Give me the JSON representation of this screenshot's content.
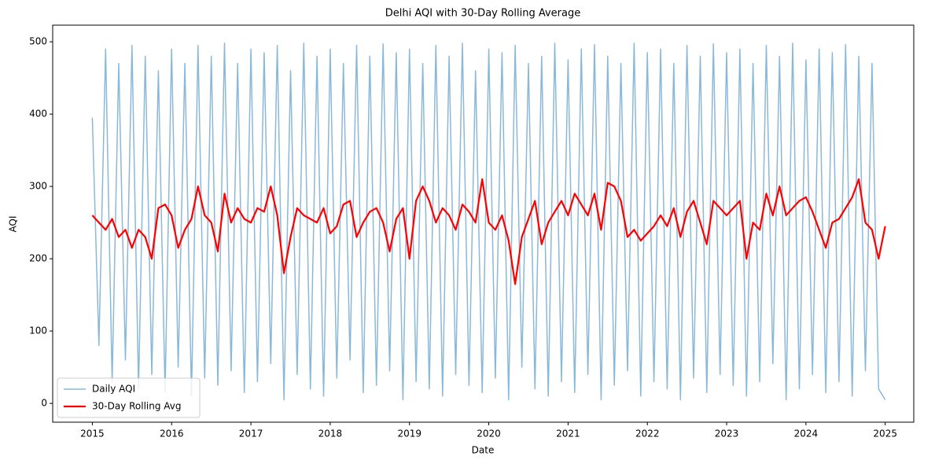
{
  "chart_data": {
    "type": "line",
    "title": "Delhi AQI with 30-Day Rolling Average",
    "x_label": "Date",
    "y_label": "AQI",
    "x": [
      2015,
      2015.083,
      2015.167,
      2015.25,
      2015.333,
      2015.417,
      2015.5,
      2015.583,
      2015.667,
      2015.75,
      2015.833,
      2015.917,
      2016,
      2016.083,
      2016.167,
      2016.25,
      2016.333,
      2016.417,
      2016.5,
      2016.583,
      2016.667,
      2016.75,
      2016.833,
      2016.917,
      2017,
      2017.083,
      2017.167,
      2017.25,
      2017.333,
      2017.417,
      2017.5,
      2017.583,
      2017.667,
      2017.75,
      2017.833,
      2017.917,
      2018,
      2018.083,
      2018.167,
      2018.25,
      2018.333,
      2018.417,
      2018.5,
      2018.583,
      2018.667,
      2018.75,
      2018.833,
      2018.917,
      2019,
      2019.083,
      2019.167,
      2019.25,
      2019.333,
      2019.417,
      2019.5,
      2019.583,
      2019.667,
      2019.75,
      2019.833,
      2019.917,
      2020,
      2020.083,
      2020.167,
      2020.25,
      2020.333,
      2020.417,
      2020.5,
      2020.583,
      2020.667,
      2020.75,
      2020.833,
      2020.917,
      2021,
      2021.083,
      2021.167,
      2021.25,
      2021.333,
      2021.417,
      2021.5,
      2021.583,
      2021.667,
      2021.75,
      2021.833,
      2021.917,
      2022,
      2022.083,
      2022.167,
      2022.25,
      2022.333,
      2022.417,
      2022.5,
      2022.583,
      2022.667,
      2022.75,
      2022.833,
      2022.917,
      2023,
      2023.083,
      2023.167,
      2023.25,
      2023.333,
      2023.417,
      2023.5,
      2023.583,
      2023.667,
      2023.75,
      2023.833,
      2023.917,
      2024,
      2024.083,
      2024.167,
      2024.25,
      2024.333,
      2024.417,
      2024.5,
      2024.583,
      2024.667,
      2024.75,
      2024.833,
      2024.917,
      2025
    ],
    "series": [
      {
        "name": "Daily AQI",
        "color": "#8ab8d8",
        "width": 1.5,
        "values": [
          395,
          80,
          490,
          30,
          470,
          60,
          495,
          20,
          480,
          40,
          460,
          15,
          490,
          50,
          470,
          10,
          495,
          35,
          480,
          25,
          498,
          45,
          470,
          15,
          490,
          30,
          485,
          55,
          495,
          5,
          460,
          40,
          498,
          20,
          480,
          10,
          490,
          35,
          470,
          60,
          495,
          15,
          480,
          25,
          497,
          45,
          485,
          5,
          490,
          30,
          470,
          20,
          495,
          10,
          480,
          40,
          498,
          25,
          460,
          15,
          490,
          35,
          485,
          5,
          495,
          50,
          470,
          20,
          480,
          10,
          498,
          30,
          475,
          15,
          490,
          40,
          496,
          5,
          480,
          25,
          470,
          45,
          498,
          10,
          485,
          30,
          490,
          20,
          470,
          5,
          495,
          35,
          480,
          15,
          497,
          40,
          485,
          25,
          490,
          10,
          470,
          30,
          495,
          55,
          480,
          5,
          498,
          20,
          475,
          40,
          490,
          15,
          485,
          30,
          496,
          10,
          480,
          45,
          470,
          20,
          5
        ]
      },
      {
        "name": "30-Day Rolling Avg",
        "color": "#ff0000",
        "width": 2.2,
        "values": [
          260,
          250,
          240,
          255,
          230,
          240,
          215,
          240,
          230,
          200,
          270,
          275,
          260,
          215,
          240,
          255,
          300,
          260,
          250,
          210,
          290,
          250,
          270,
          255,
          250,
          270,
          265,
          300,
          260,
          180,
          230,
          270,
          260,
          255,
          250,
          270,
          235,
          245,
          275,
          280,
          230,
          250,
          265,
          270,
          250,
          210,
          255,
          270,
          200,
          280,
          300,
          280,
          250,
          270,
          260,
          240,
          275,
          265,
          250,
          310,
          250,
          240,
          260,
          225,
          165,
          230,
          255,
          280,
          220,
          250,
          265,
          280,
          260,
          290,
          275,
          260,
          290,
          240,
          305,
          300,
          280,
          230,
          240,
          225,
          235,
          245,
          260,
          245,
          270,
          230,
          265,
          280,
          250,
          220,
          280,
          270,
          260,
          270,
          280,
          200,
          250,
          240,
          290,
          260,
          300,
          260,
          270,
          280,
          285,
          265,
          240,
          215,
          250,
          255,
          270,
          285,
          310,
          250,
          240,
          200,
          245
        ]
      }
    ],
    "xlim": [
      2014.5,
      2025.36
    ],
    "xticks": [
      2015,
      2016,
      2017,
      2018,
      2019,
      2020,
      2021,
      2022,
      2023,
      2024,
      2025
    ],
    "ylim": [
      -26,
      523
    ],
    "yticks": [
      0,
      100,
      200,
      300,
      400,
      500
    ],
    "grid": false,
    "legend": "lower left"
  }
}
